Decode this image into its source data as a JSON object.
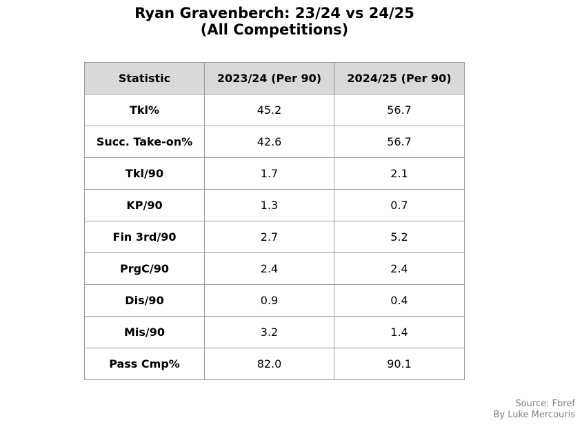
{
  "title": {
    "line1": "Ryan Gravenberch: 23/24 vs 24/25",
    "line2": "(All Competitions)"
  },
  "chart_data": {
    "type": "table",
    "columns": [
      "Statistic",
      "2023/24 (Per 90)",
      "2024/25 (Per 90)"
    ],
    "rows": [
      [
        "Tkl%",
        "45.2",
        "56.7"
      ],
      [
        "Succ. Take-on%",
        "42.6",
        "56.7"
      ],
      [
        "Tkl/90",
        "1.7",
        "2.1"
      ],
      [
        "KP/90",
        "1.3",
        "0.7"
      ],
      [
        "Fin 3rd/90",
        "2.7",
        "5.2"
      ],
      [
        "PrgC/90",
        "2.4",
        "2.4"
      ],
      [
        "Dis/90",
        "0.9",
        "0.4"
      ],
      [
        "Mis/90",
        "3.2",
        "1.4"
      ],
      [
        "Pass Cmp%",
        "82.0",
        "90.1"
      ]
    ],
    "header_color": "#d9d9d9",
    "border_color": "#999999"
  },
  "footer": {
    "source": "Source: Fbref",
    "credit": "By Luke Mercouris"
  }
}
